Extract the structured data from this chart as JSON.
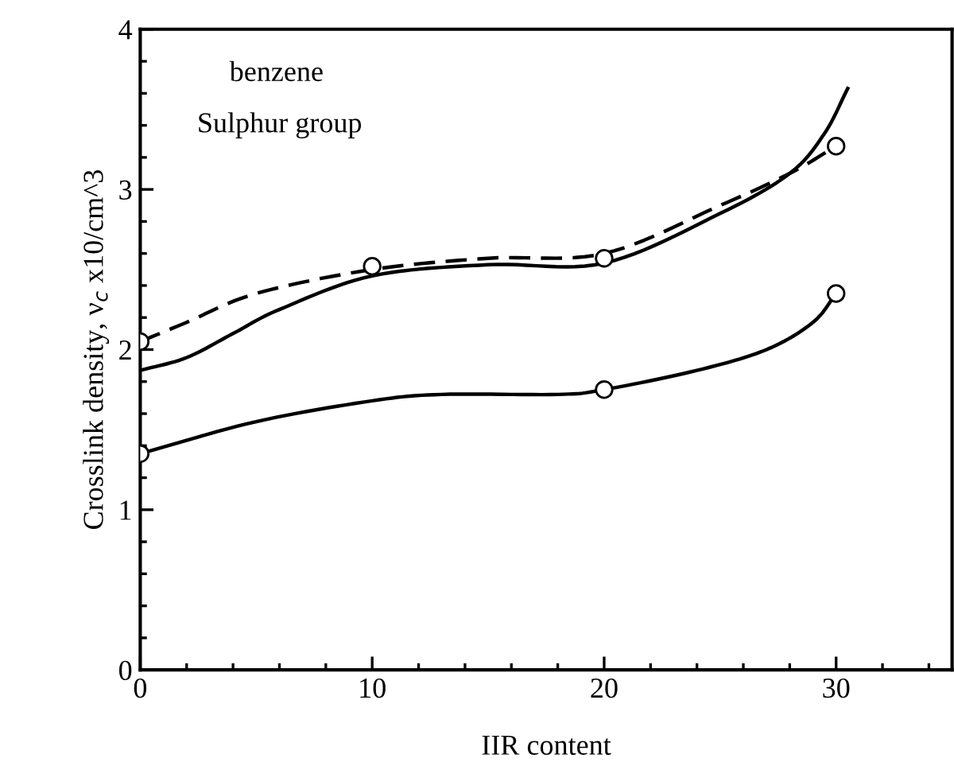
{
  "chart_data": {
    "type": "line",
    "xlabel": "IIR content",
    "ylabel": "Crosslink density, ν$_{c}$ x10/cm^3",
    "annotations": [
      "benzene",
      "Sulphur group"
    ],
    "xlim": [
      0,
      35
    ],
    "xticks": [
      0,
      10,
      20,
      30
    ],
    "ylim": [
      0,
      4
    ],
    "yticks": [
      0,
      1,
      2,
      3,
      4
    ],
    "grid": false,
    "legend": false,
    "series": [
      {
        "color": "#000000",
        "line_style": "dashed",
        "marker": "none",
        "x": [
          0,
          2,
          5,
          10,
          15,
          20,
          25,
          28,
          30
        ],
        "values": [
          2.05,
          2.17,
          2.35,
          2.5,
          2.57,
          2.6,
          2.9,
          3.1,
          3.27
        ]
      },
      {
        "color": "#000000",
        "line_style": "solid",
        "marker": "none",
        "x": [
          0,
          2,
          4,
          6,
          10,
          15,
          20,
          25,
          28,
          29.5,
          30.5
        ],
        "values": [
          1.87,
          1.95,
          2.1,
          2.25,
          2.46,
          2.53,
          2.54,
          2.85,
          3.1,
          3.35,
          3.63
        ]
      },
      {
        "color": "#000000",
        "line_style": "solid",
        "marker": "none",
        "x": [
          0,
          5,
          10,
          13,
          18,
          20,
          24,
          27,
          29,
          30
        ],
        "values": [
          1.35,
          1.55,
          1.68,
          1.72,
          1.72,
          1.75,
          1.87,
          2.0,
          2.17,
          2.35
        ]
      },
      {
        "type": "scatter",
        "color": "#000000",
        "marker": "circle",
        "x": [
          0,
          10,
          30
        ],
        "values": [
          2.05,
          2.52,
          3.27
        ]
      },
      {
        "type": "scatter",
        "color": "#000000",
        "marker": "circle",
        "x": [
          20,
          0,
          20,
          30
        ],
        "values": [
          2.57,
          1.35,
          1.75,
          2.35
        ]
      }
    ]
  }
}
